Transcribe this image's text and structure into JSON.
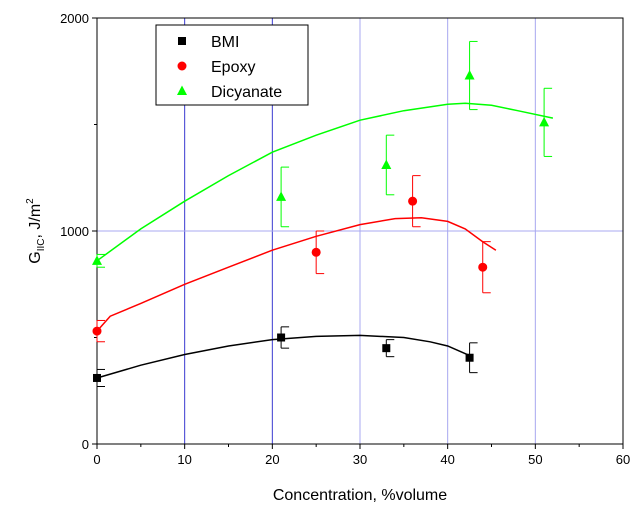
{
  "chart_data": {
    "type": "scatter",
    "xlabel": "Concentration, %volume",
    "ylabel": {
      "main": "G",
      "sub": "IIC",
      "mid": ", J/m",
      "sup": "2"
    },
    "xlim": [
      0,
      60
    ],
    "ylim": [
      0,
      2000
    ],
    "x_ticks": [
      0,
      10,
      20,
      30,
      40,
      50,
      60
    ],
    "y_ticks": [
      0,
      1000,
      2000
    ],
    "x_grid_lines": [
      10,
      20,
      30,
      40,
      50
    ],
    "y_grid_lines": [
      1000
    ],
    "legend_position": "top-left",
    "series": [
      {
        "name": "BMI",
        "marker": "square",
        "color": "#000000",
        "points": [
          {
            "x": 0,
            "y": 310,
            "err": 40
          },
          {
            "x": 21,
            "y": 500,
            "err": 50
          },
          {
            "x": 33,
            "y": 450,
            "err": 40
          },
          {
            "x": 42.5,
            "y": 405,
            "err": 70
          }
        ],
        "fit": [
          [
            0,
            310
          ],
          [
            5,
            370
          ],
          [
            10,
            420
          ],
          [
            15,
            460
          ],
          [
            20,
            490
          ],
          [
            25,
            505
          ],
          [
            30,
            510
          ],
          [
            35,
            500
          ],
          [
            38,
            480
          ],
          [
            40,
            460
          ],
          [
            42.5,
            415
          ]
        ]
      },
      {
        "name": "Epoxy",
        "marker": "circle",
        "color": "#ff0000",
        "points": [
          {
            "x": 0,
            "y": 530,
            "err": 50
          },
          {
            "x": 25,
            "y": 900,
            "err": 100
          },
          {
            "x": 36,
            "y": 1140,
            "err": 120
          },
          {
            "x": 44,
            "y": 830,
            "err": 120
          }
        ],
        "fit": [
          [
            0,
            530
          ],
          [
            1.5,
            600
          ],
          [
            5,
            660
          ],
          [
            10,
            750
          ],
          [
            15,
            830
          ],
          [
            20,
            910
          ],
          [
            25,
            975
          ],
          [
            30,
            1030
          ],
          [
            34,
            1058
          ],
          [
            37,
            1062
          ],
          [
            40,
            1045
          ],
          [
            42,
            1010
          ],
          [
            44,
            950
          ],
          [
            45.5,
            910
          ]
        ]
      },
      {
        "name": "Dicyanate",
        "marker": "triangle",
        "color": "#00ff00",
        "points": [
          {
            "x": 0,
            "y": 860,
            "err": 30
          },
          {
            "x": 21,
            "y": 1160,
            "err": 140
          },
          {
            "x": 33,
            "y": 1310,
            "err": 140
          },
          {
            "x": 42.5,
            "y": 1730,
            "err": 160
          },
          {
            "x": 51,
            "y": 1510,
            "err": 160
          }
        ],
        "fit": [
          [
            0,
            860
          ],
          [
            5,
            1010
          ],
          [
            10,
            1140
          ],
          [
            15,
            1260
          ],
          [
            20,
            1370
          ],
          [
            25,
            1450
          ],
          [
            30,
            1520
          ],
          [
            35,
            1565
          ],
          [
            40,
            1595
          ],
          [
            42,
            1600
          ],
          [
            45,
            1590
          ],
          [
            48,
            1565
          ],
          [
            52,
            1530
          ]
        ]
      }
    ]
  }
}
